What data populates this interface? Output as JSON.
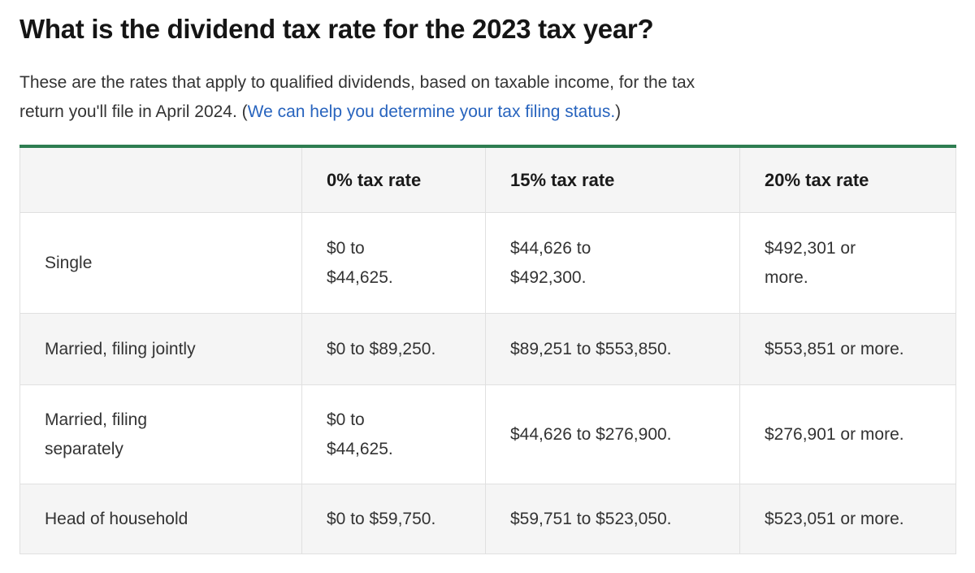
{
  "page": {
    "title": "What is the dividend tax rate for the 2023 tax year?",
    "intro": {
      "before_link": "These are the rates that apply to qualified dividends, based on taxable income, for the tax\nreturn you'll file in April 2024. (",
      "link_text": "We can help you determine your tax filing status.",
      "after_link": ")"
    }
  },
  "table": {
    "headers": [
      "",
      "0% tax rate",
      "15% tax rate",
      "20% tax rate"
    ],
    "rows": [
      {
        "label": "Single",
        "rate0": "$0 to\n$44,625.",
        "rate15": "$44,626 to\n$492,300.",
        "rate20": "$492,301 or\nmore."
      },
      {
        "label": "Married, filing jointly",
        "rate0": "$0 to $89,250.",
        "rate15": "$89,251 to $553,850.",
        "rate20": "$553,851 or more."
      },
      {
        "label": "Married, filing\nseparately",
        "rate0": "$0 to\n$44,625.",
        "rate15": "$44,626 to $276,900.",
        "rate20": "$276,901 or more."
      },
      {
        "label": "Head of household",
        "rate0": "$0 to $59,750.",
        "rate15": "$59,751 to $523,050.",
        "rate20": "$523,051 or more."
      }
    ]
  },
  "colors": {
    "accent_green": "#2e7d51",
    "link_blue": "#2864be",
    "stripe_gray": "#f5f5f5",
    "border_gray": "#e0e0e0",
    "heading_text": "#151515",
    "body_text": "#333333"
  }
}
